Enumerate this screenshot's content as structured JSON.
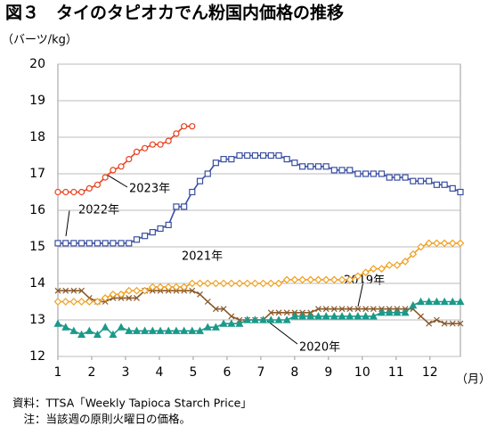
{
  "chart_data": {
    "type": "line",
    "title": "図３　タイのタピオカでん粉国内価格の推移",
    "y_label": "（バーツ/kg）",
    "x_label": "（月）",
    "notes": [
      "資料：TTSA「Weekly Tapioca Starch Price」",
      "　注：当該週の原則火曜日の価格。"
    ],
    "x": [
      1,
      1.23,
      1.47,
      1.7,
      1.93,
      2.17,
      2.4,
      2.63,
      2.87,
      3.1,
      3.33,
      3.57,
      3.8,
      4.03,
      4.27,
      4.5,
      4.73,
      4.97,
      5.2,
      5.43,
      5.67,
      5.9,
      6.13,
      6.37,
      6.6,
      6.83,
      7.07,
      7.3,
      7.53,
      7.77,
      8,
      8.23,
      8.47,
      8.7,
      8.93,
      9.17,
      9.4,
      9.63,
      9.87,
      10.1,
      10.33,
      10.57,
      10.8,
      11.03,
      11.27,
      11.5,
      11.73,
      11.97,
      12.2,
      12.43,
      12.67,
      12.9
    ],
    "xlim": [
      1,
      12.9
    ],
    "xticks": [
      1,
      2,
      3,
      4,
      5,
      6,
      7,
      8,
      9,
      10,
      11,
      12
    ],
    "ylim": [
      12,
      20
    ],
    "yticks": [
      12,
      13,
      14,
      15,
      16,
      17,
      18,
      19,
      20
    ],
    "grid": true,
    "series": [
      {
        "name": "2019年",
        "color": "#8b5a2b",
        "marker": "x",
        "values": [
          13.8,
          13.8,
          13.8,
          13.8,
          13.6,
          13.5,
          13.5,
          13.6,
          13.6,
          13.6,
          13.6,
          13.8,
          13.8,
          13.8,
          13.8,
          13.8,
          13.8,
          13.8,
          13.7,
          13.5,
          13.3,
          13.3,
          13.1,
          13.0,
          13.0,
          13.0,
          13.0,
          13.2,
          13.2,
          13.2,
          13.2,
          13.2,
          13.2,
          13.3,
          13.3,
          13.3,
          13.3,
          13.3,
          13.3,
          13.3,
          13.3,
          13.3,
          13.3,
          13.3,
          13.3,
          13.3,
          13.1,
          12.9,
          13.0,
          12.9,
          12.9,
          12.9
        ]
      },
      {
        "name": "2020年",
        "color": "#1a9a8a",
        "marker": "triangle",
        "values": [
          12.9,
          12.8,
          12.7,
          12.6,
          12.7,
          12.6,
          12.8,
          12.6,
          12.8,
          12.7,
          12.7,
          12.7,
          12.7,
          12.7,
          12.7,
          12.7,
          12.7,
          12.7,
          12.7,
          12.8,
          12.8,
          12.9,
          12.9,
          12.9,
          13.0,
          13.0,
          13.0,
          13.0,
          13.0,
          13.0,
          13.1,
          13.1,
          13.1,
          13.1,
          13.1,
          13.1,
          13.1,
          13.1,
          13.1,
          13.1,
          13.1,
          13.2,
          13.2,
          13.2,
          13.2,
          13.4,
          13.5,
          13.5,
          13.5,
          13.5,
          13.5,
          13.5
        ]
      },
      {
        "name": "2021年",
        "color": "#f0a020",
        "marker": "diamond",
        "values": [
          13.5,
          13.5,
          13.5,
          13.5,
          13.5,
          13.5,
          13.6,
          13.7,
          13.7,
          13.8,
          13.8,
          13.8,
          13.9,
          13.9,
          13.9,
          13.9,
          13.9,
          14.0,
          14.0,
          14.0,
          14.0,
          14.0,
          14.0,
          14.0,
          14.0,
          14.0,
          14.0,
          14.0,
          14.0,
          14.1,
          14.1,
          14.1,
          14.1,
          14.1,
          14.1,
          14.1,
          14.1,
          14.1,
          14.2,
          14.3,
          14.4,
          14.4,
          14.5,
          14.5,
          14.6,
          14.8,
          15.0,
          15.1,
          15.1,
          15.1,
          15.1,
          15.1
        ]
      },
      {
        "name": "2022年",
        "color": "#3a4fa0",
        "marker": "square",
        "values": [
          15.1,
          15.1,
          15.1,
          15.1,
          15.1,
          15.1,
          15.1,
          15.1,
          15.1,
          15.1,
          15.2,
          15.3,
          15.4,
          15.5,
          15.6,
          16.1,
          16.1,
          16.5,
          16.8,
          17.0,
          17.3,
          17.4,
          17.4,
          17.5,
          17.5,
          17.5,
          17.5,
          17.5,
          17.5,
          17.4,
          17.3,
          17.2,
          17.2,
          17.2,
          17.2,
          17.1,
          17.1,
          17.1,
          17.0,
          17.0,
          17.0,
          17.0,
          16.9,
          16.9,
          16.9,
          16.8,
          16.8,
          16.8,
          16.7,
          16.7,
          16.6,
          16.5
        ]
      },
      {
        "name": "2023年",
        "color": "#e8401c",
        "marker": "circle",
        "values": [
          16.5,
          16.5,
          16.5,
          16.5,
          16.6,
          16.7,
          16.9,
          17.1,
          17.2,
          17.4,
          17.6,
          17.7,
          17.8,
          17.8,
          17.9,
          18.1,
          18.3,
          18.3,
          null,
          null,
          null,
          null,
          null,
          null,
          null,
          null,
          null,
          null,
          null,
          null,
          null,
          null,
          null,
          null,
          null,
          null,
          null,
          null,
          null,
          null,
          null,
          null,
          null,
          null,
          null,
          null,
          null,
          null,
          null,
          null,
          null,
          null
        ]
      }
    ]
  }
}
